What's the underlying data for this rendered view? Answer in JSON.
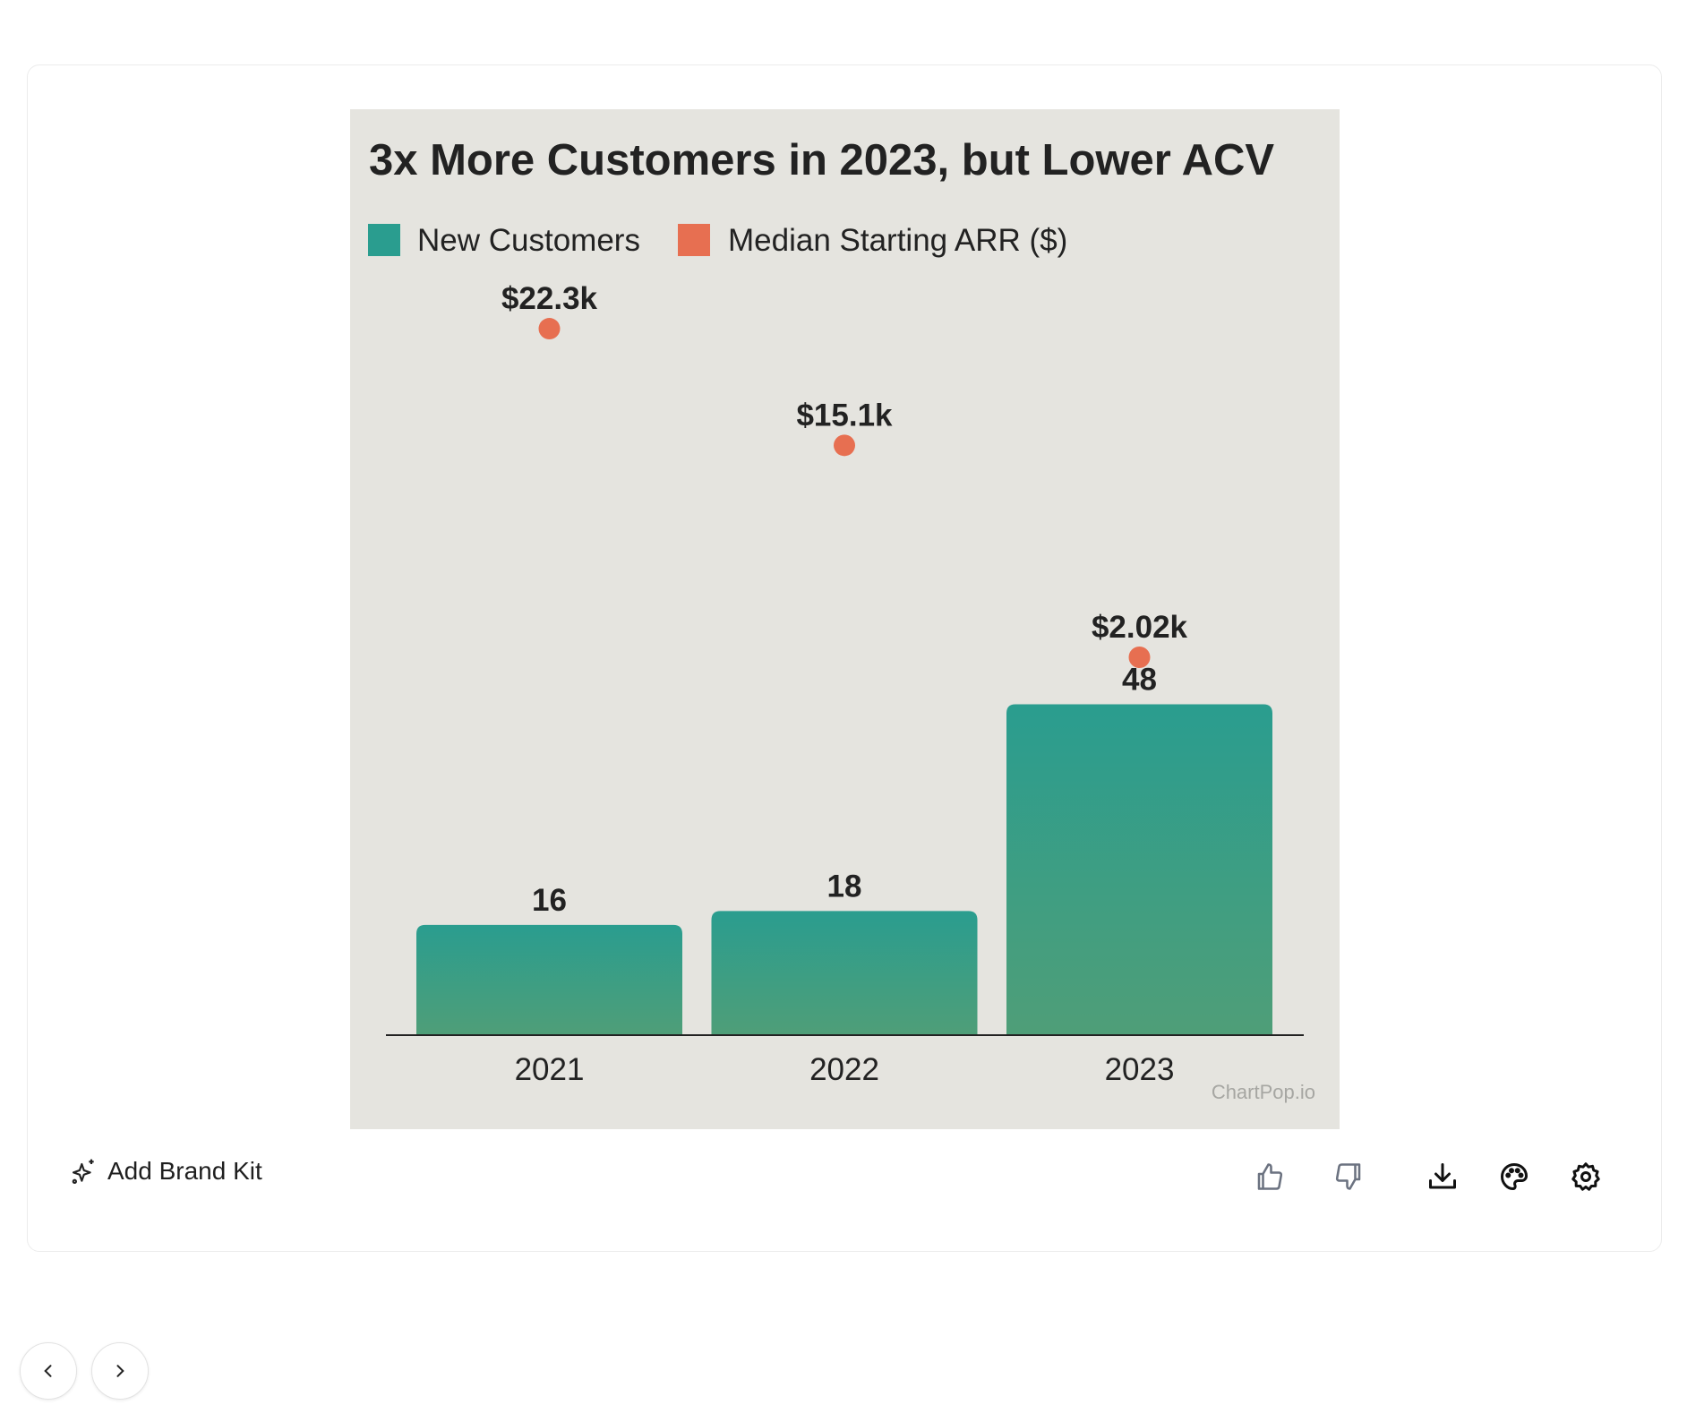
{
  "chart_data": {
    "type": "bar",
    "title": "3x More Customers in 2023, but Lower ACV",
    "categories": [
      "2021",
      "2022",
      "2023"
    ],
    "series": [
      {
        "name": "New Customers",
        "kind": "bar",
        "values": [
          16,
          18,
          48
        ],
        "labels": [
          "16",
          "18",
          "48"
        ],
        "color": "#2a9d8f",
        "color_bottom": "#4f9e78",
        "ylim": [
          0,
          108.6
        ]
      },
      {
        "name": "Median Starting ARR ($)",
        "kind": "scatter",
        "values": [
          22300,
          15100,
          2020
        ],
        "labels": [
          "$22.3k",
          "$15.1k",
          "$2.02k"
        ],
        "color": "#e76f51",
        "ylim": [
          -21300,
          24900
        ]
      }
    ],
    "xlabel": "",
    "ylabel": "",
    "grid": false,
    "legend_position": "top-left",
    "watermark": "ChartPop.io"
  },
  "toolbar": {
    "brand_kit_label": "Add Brand Kit"
  }
}
